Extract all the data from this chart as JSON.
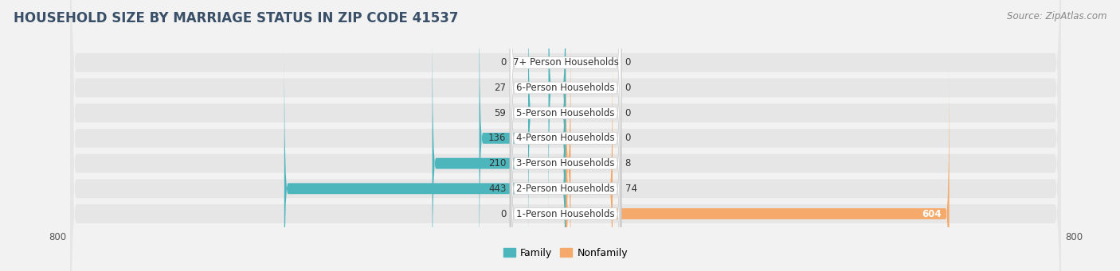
{
  "title": "HOUSEHOLD SIZE BY MARRIAGE STATUS IN ZIP CODE 41537",
  "source": "Source: ZipAtlas.com",
  "categories": [
    "1-Person Households",
    "2-Person Households",
    "3-Person Households",
    "4-Person Households",
    "5-Person Households",
    "6-Person Households",
    "7+ Person Households"
  ],
  "family_values": [
    0,
    443,
    210,
    136,
    59,
    27,
    0
  ],
  "nonfamily_values": [
    604,
    74,
    8,
    0,
    0,
    0,
    0
  ],
  "family_color": "#4db5bc",
  "nonfamily_color": "#f5a96a",
  "bg_color": "#f2f2f2",
  "row_bg_color": "#e6e6e6",
  "title_color": "#3a5068",
  "source_color": "#888888",
  "title_fontsize": 12,
  "label_fontsize": 8.5,
  "source_fontsize": 8.5,
  "xlim_left": -820,
  "xlim_right": 820,
  "max_val": 800
}
